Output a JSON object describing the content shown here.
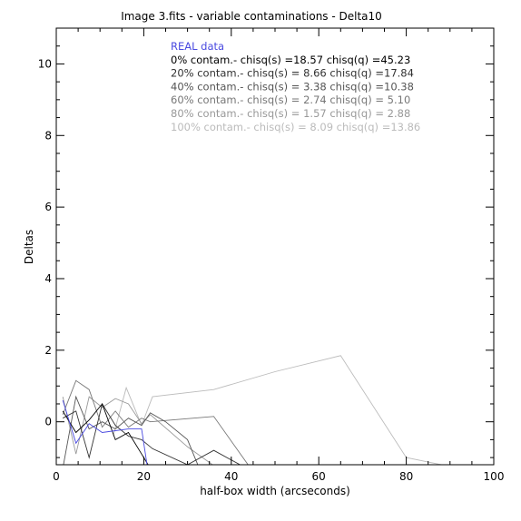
{
  "chart_data": {
    "type": "line",
    "title": "Image 3.fits - variable contaminations - Delta10",
    "xlabel": "half-box width (arcseconds)",
    "ylabel": "Deltas",
    "xlim": [
      0,
      100
    ],
    "ylim": [
      -1.2,
      11
    ],
    "x_ticks": [
      0,
      20,
      40,
      60,
      80,
      100
    ],
    "y_ticks": [
      0,
      2,
      4,
      6,
      8,
      10
    ],
    "legend_position": "top-center",
    "legend": [
      {
        "text": "REAL data",
        "color": "#4a4ae0"
      },
      {
        "text": "0% contam.- chisq(s) =18.57 chisq(q) =45.23",
        "color": "#000000"
      },
      {
        "text": "20% contam.- chisq(s) = 8.66 chisq(q) =17.84",
        "color": "#333333"
      },
      {
        "text": "40% contam.- chisq(s) = 3.38 chisq(q) =10.38",
        "color": "#555555"
      },
      {
        "text": "60% contam.- chisq(s) = 2.74 chisq(q) = 5.10",
        "color": "#777777"
      },
      {
        "text": "80% contam.- chisq(s) = 1.57 chisq(q) = 2.88",
        "color": "#999999"
      },
      {
        "text": "100% contam.- chisq(s) = 8.09 chisq(q) =13.86",
        "color": "#bbbbbb"
      }
    ],
    "series": [
      {
        "name": "REAL data",
        "color": "#4a4ae0",
        "x": [
          1.5,
          4.5,
          7.5,
          10.5,
          13.5,
          16.5,
          19.5,
          21
        ],
        "y": [
          0.6,
          -0.6,
          -0.05,
          -0.3,
          -0.25,
          -0.2,
          -0.2,
          -1.4
        ]
      },
      {
        "name": "0% contam.",
        "color": "#000000",
        "x": [
          1.5,
          4.5,
          7.5,
          10.5,
          13.5,
          16.5,
          19.5,
          22
        ],
        "y": [
          0.3,
          -0.3,
          0.05,
          0.5,
          -0.5,
          -0.3,
          -0.9,
          -1.4
        ]
      },
      {
        "name": "20% contam.",
        "color": "#333333",
        "x": [
          1.5,
          4.5,
          7.5,
          10.5,
          13.5,
          16.5,
          19.5,
          22,
          30,
          36,
          45
        ],
        "y": [
          0.1,
          0.3,
          -1.0,
          0.5,
          -0.1,
          -0.4,
          -0.5,
          -0.75,
          -1.2,
          -0.8,
          -1.4
        ]
      },
      {
        "name": "40% contam.",
        "color": "#555555",
        "x": [
          1.5,
          4.5,
          7.5,
          10.5,
          13.5,
          16.5,
          19.5,
          21.5,
          25,
          30,
          33
        ],
        "y": [
          -1.3,
          0.7,
          -0.2,
          0.0,
          -0.2,
          0.1,
          -0.1,
          0.25,
          0.0,
          -0.5,
          -1.4
        ]
      },
      {
        "name": "60% contam.",
        "color": "#777777",
        "x": [
          1.5,
          4.5,
          7.5,
          10.5,
          13.5,
          16.5,
          19.5,
          21.5,
          36,
          45
        ],
        "y": [
          0.2,
          1.15,
          0.9,
          -0.15,
          0.3,
          -0.15,
          0.1,
          0.0,
          0.15,
          -1.4
        ]
      },
      {
        "name": "80% contam.",
        "color": "#999999",
        "x": [
          1.5,
          4.5,
          7.5,
          10.5,
          13.5,
          16.5,
          19.5,
          21.5,
          30,
          38
        ],
        "y": [
          0.7,
          -0.9,
          0.7,
          0.4,
          0.65,
          0.5,
          -0.05,
          0.2,
          -0.7,
          -1.4
        ]
      },
      {
        "name": "100% contam.",
        "color": "#bbbbbb",
        "x": [
          13,
          16,
          19.5,
          22,
          36,
          50,
          65,
          80,
          88
        ],
        "y": [
          -0.4,
          0.95,
          -0.1,
          0.7,
          0.9,
          1.4,
          1.85,
          -1.0,
          -1.2
        ]
      }
    ]
  }
}
